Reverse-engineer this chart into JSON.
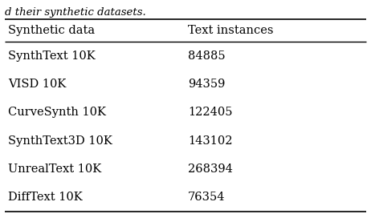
{
  "col_headers": [
    "Synthetic data",
    "Text instances"
  ],
  "rows": [
    [
      "SynthText 10K",
      "84885"
    ],
    [
      "VISD 10K",
      "94359"
    ],
    [
      "CurveSynth 10K",
      "122405"
    ],
    [
      "SynthText3D 10K",
      "143102"
    ],
    [
      "UnrealText 10K",
      "268394"
    ],
    [
      "DiffText 10K",
      "76354"
    ]
  ],
  "caption_top": "d their synthetic datasets.",
  "background_color": "#ffffff",
  "text_color": "#000000",
  "font_size": 10.5,
  "caption_font_size": 9.5
}
